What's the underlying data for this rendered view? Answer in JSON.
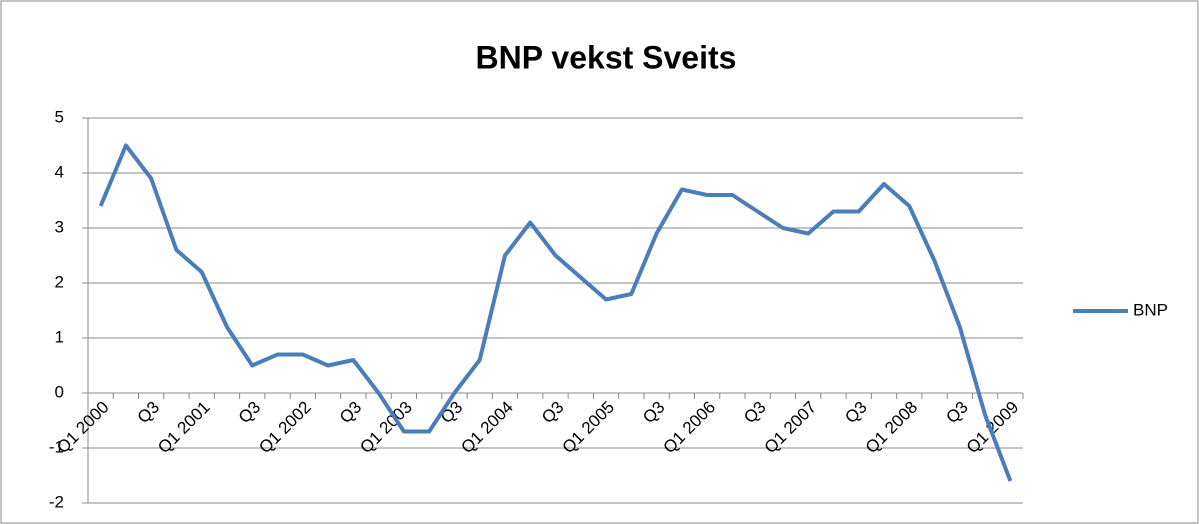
{
  "chart_data": {
    "type": "line",
    "title": "BNP vekst Sveits",
    "categories": [
      "Q1 2000",
      null,
      "Q3",
      null,
      "Q1 2001",
      null,
      "Q3",
      null,
      "Q1 2002",
      null,
      "Q3",
      null,
      "Q1 2003",
      null,
      "Q3",
      null,
      "Q1 2004",
      null,
      "Q3",
      null,
      "Q1 2005",
      null,
      "Q3",
      null,
      "Q1 2006",
      null,
      "Q3",
      null,
      "Q1 2007",
      null,
      "Q3",
      null,
      "Q1 2008",
      null,
      "Q3",
      null,
      "Q1 2009"
    ],
    "series": [
      {
        "name": "BNP",
        "color": "#4a7ebb",
        "values": [
          3.4,
          4.5,
          3.9,
          2.6,
          2.2,
          1.2,
          0.5,
          0.7,
          0.7,
          0.5,
          0.6,
          0,
          -0.7,
          -0.7,
          0,
          0.6,
          2.5,
          3.1,
          2.5,
          2.1,
          1.7,
          1.8,
          2.9,
          3.7,
          3.6,
          3.6,
          3.3,
          3.0,
          2.9,
          3.3,
          3.3,
          3.8,
          3.4,
          2.4,
          1.2,
          -0.4,
          -1.6
        ]
      }
    ],
    "ylim": [
      -2,
      5
    ],
    "yticks": [
      -2,
      -1,
      0,
      1,
      2,
      3,
      4,
      5
    ],
    "grid": true,
    "legend": "right"
  }
}
